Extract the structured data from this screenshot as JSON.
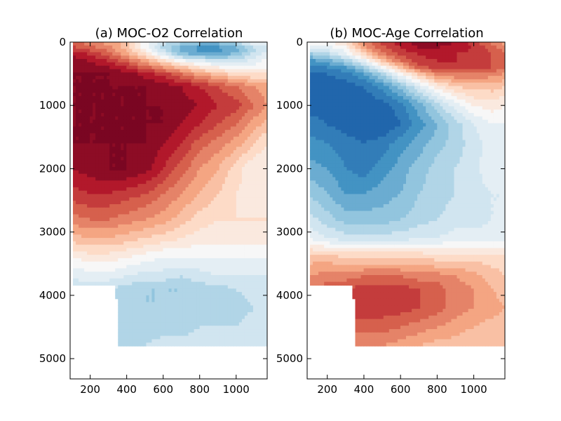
{
  "chart_data": [
    {
      "type": "heatmap",
      "title": "(a) MOC-O2 Correlation",
      "xlabel": "",
      "ylabel": "",
      "xlim": [
        90,
        1170
      ],
      "ylim": [
        5320,
        0
      ],
      "y_inverted": true,
      "xticks": [
        200,
        400,
        600,
        800,
        1000
      ],
      "yticks": [
        0,
        1000,
        2000,
        3000,
        4000,
        5000
      ],
      "colormap": "RdBu_r",
      "levels": [
        -1,
        -0.9,
        -0.8,
        -0.7,
        -0.6,
        -0.5,
        -0.4,
        -0.3,
        -0.2,
        -0.1,
        0,
        0.1,
        0.2,
        0.3,
        0.4,
        0.5,
        0.6,
        0.7,
        0.8,
        0.9,
        1
      ],
      "grid": false,
      "x": [
        90,
        200,
        300,
        400,
        500,
        600,
        700,
        800,
        900,
        1000,
        1100,
        1170
      ],
      "y": [
        0,
        100,
        200,
        300,
        400,
        500,
        700,
        1000,
        1300,
        1600,
        2000,
        2400,
        2800,
        3100,
        3400,
        3700,
        3900,
        4200,
        4500,
        4800
      ],
      "z": [
        [
          0.6,
          0.5,
          0.4,
          0.3,
          0.0,
          -0.2,
          -0.3,
          -0.4,
          -0.4,
          -0.3,
          0.0,
          0.0
        ],
        [
          0.7,
          0.6,
          0.5,
          0.3,
          0.0,
          -0.3,
          -0.5,
          -0.6,
          -0.6,
          -0.5,
          -0.3,
          -0.2
        ],
        [
          0.85,
          0.75,
          0.6,
          0.4,
          0.2,
          -0.1,
          -0.4,
          -0.5,
          -0.5,
          -0.4,
          -0.2,
          -0.1
        ],
        [
          0.9,
          0.85,
          0.75,
          0.6,
          0.4,
          0.2,
          0.0,
          -0.1,
          -0.2,
          -0.2,
          -0.1,
          0.0
        ],
        [
          0.95,
          0.9,
          0.85,
          0.75,
          0.6,
          0.45,
          0.3,
          0.15,
          0.05,
          0.0,
          0.0,
          0.05
        ],
        [
          0.95,
          0.95,
          0.95,
          0.9,
          0.8,
          0.7,
          0.55,
          0.4,
          0.3,
          0.2,
          0.15,
          0.15
        ],
        [
          0.95,
          0.95,
          0.95,
          0.95,
          0.95,
          0.9,
          0.85,
          0.75,
          0.65,
          0.55,
          0.45,
          0.4
        ],
        [
          0.95,
          0.95,
          0.95,
          0.95,
          0.95,
          0.95,
          0.9,
          0.85,
          0.75,
          0.7,
          0.55,
          0.45
        ],
        [
          0.95,
          0.95,
          0.95,
          0.95,
          0.95,
          0.95,
          0.85,
          0.75,
          0.65,
          0.55,
          0.4,
          0.3
        ],
        [
          0.95,
          0.95,
          0.95,
          0.95,
          0.95,
          0.85,
          0.75,
          0.6,
          0.5,
          0.4,
          0.25,
          0.15
        ],
        [
          0.85,
          0.9,
          0.95,
          0.95,
          0.9,
          0.75,
          0.6,
          0.45,
          0.35,
          0.2,
          0.05,
          0.1
        ],
        [
          0.7,
          0.75,
          0.75,
          0.7,
          0.65,
          0.55,
          0.45,
          0.35,
          0.25,
          0.15,
          0.1,
          0.15
        ],
        [
          0.5,
          0.55,
          0.55,
          0.5,
          0.45,
          0.4,
          0.3,
          0.2,
          0.15,
          0.15,
          0.15,
          0.15
        ],
        [
          0.3,
          0.35,
          0.35,
          0.3,
          0.25,
          0.2,
          0.15,
          0.1,
          0.1,
          0.1,
          0.1,
          0.1
        ],
        [
          0.05,
          0.1,
          0.1,
          0.05,
          0.0,
          -0.05,
          -0.05,
          -0.05,
          -0.05,
          -0.05,
          -0.05,
          -0.05
        ],
        [
          -0.15,
          -0.1,
          -0.1,
          -0.15,
          -0.2,
          -0.2,
          -0.25,
          -0.2,
          -0.15,
          -0.15,
          -0.15,
          -0.15
        ],
        [
          -0.2,
          -0.2,
          -0.25,
          -0.3,
          -0.35,
          -0.35,
          -0.35,
          -0.3,
          -0.3,
          -0.25,
          -0.2,
          -0.2
        ],
        [
          null,
          null,
          null,
          -0.35,
          -0.35,
          -0.35,
          -0.35,
          -0.35,
          -0.35,
          -0.3,
          -0.25,
          -0.25
        ],
        [
          null,
          null,
          null,
          -0.3,
          -0.3,
          -0.3,
          -0.3,
          -0.25,
          -0.25,
          -0.25,
          -0.2,
          -0.2
        ],
        [
          null,
          null,
          null,
          -0.25,
          -0.25,
          -0.2,
          -0.2,
          -0.2,
          -0.2,
          -0.2,
          -0.2,
          -0.2
        ]
      ]
    },
    {
      "type": "heatmap",
      "title": "(b) MOC-Age Correlation",
      "xlabel": "",
      "ylabel": "",
      "xlim": [
        90,
        1170
      ],
      "ylim": [
        5320,
        0
      ],
      "y_inverted": true,
      "xticks": [
        200,
        400,
        600,
        800,
        1000
      ],
      "yticks": [
        0,
        1000,
        2000,
        3000,
        4000,
        5000
      ],
      "colormap": "RdBu_r",
      "levels": [
        -1,
        -0.9,
        -0.8,
        -0.7,
        -0.6,
        -0.5,
        -0.4,
        -0.3,
        -0.2,
        -0.1,
        0,
        0.1,
        0.2,
        0.3,
        0.4,
        0.5,
        0.6,
        0.7,
        0.8,
        0.9,
        1
      ],
      "grid": false,
      "x": [
        90,
        200,
        300,
        400,
        500,
        600,
        700,
        800,
        900,
        1000,
        1100,
        1170
      ],
      "y": [
        0,
        100,
        200,
        300,
        400,
        500,
        700,
        1000,
        1300,
        1600,
        2000,
        2400,
        2800,
        3100,
        3400,
        3700,
        3900,
        4200,
        4500,
        4800
      ],
      "z": [
        [
          0.0,
          0.0,
          0.2,
          0.5,
          0.7,
          0.8,
          0.9,
          0.9,
          0.85,
          0.7,
          0.5,
          0.4
        ],
        [
          -0.2,
          -0.1,
          0.0,
          0.4,
          0.6,
          0.75,
          0.85,
          0.85,
          0.8,
          0.75,
          0.6,
          0.5
        ],
        [
          -0.4,
          -0.3,
          -0.1,
          0.2,
          0.5,
          0.65,
          0.75,
          0.8,
          0.75,
          0.7,
          0.65,
          0.6
        ],
        [
          -0.6,
          -0.5,
          -0.35,
          -0.1,
          0.3,
          0.55,
          0.7,
          0.75,
          0.75,
          0.7,
          0.65,
          0.6
        ],
        [
          -0.7,
          -0.65,
          -0.55,
          -0.35,
          0.0,
          0.3,
          0.6,
          0.7,
          0.7,
          0.7,
          0.65,
          0.6
        ],
        [
          -0.8,
          -0.75,
          -0.7,
          -0.55,
          -0.3,
          0.0,
          0.3,
          0.5,
          0.55,
          0.55,
          0.5,
          0.45
        ],
        [
          -0.8,
          -0.8,
          -0.8,
          -0.75,
          -0.6,
          -0.4,
          -0.15,
          0.1,
          0.25,
          0.3,
          0.3,
          0.25
        ],
        [
          -0.8,
          -0.8,
          -0.85,
          -0.85,
          -0.8,
          -0.7,
          -0.5,
          -0.3,
          -0.1,
          0.05,
          0.1,
          0.05
        ],
        [
          -0.7,
          -0.75,
          -0.8,
          -0.85,
          -0.85,
          -0.75,
          -0.6,
          -0.45,
          -0.3,
          -0.15,
          -0.05,
          -0.05
        ],
        [
          -0.6,
          -0.65,
          -0.7,
          -0.75,
          -0.7,
          -0.6,
          -0.5,
          -0.4,
          -0.3,
          -0.2,
          -0.1,
          -0.1
        ],
        [
          -0.5,
          -0.55,
          -0.65,
          -0.7,
          -0.6,
          -0.5,
          -0.4,
          -0.3,
          -0.25,
          -0.2,
          -0.05,
          -0.1
        ],
        [
          -0.35,
          -0.45,
          -0.55,
          -0.55,
          -0.5,
          -0.45,
          -0.35,
          -0.3,
          -0.25,
          -0.2,
          -0.15,
          -0.15
        ],
        [
          -0.2,
          -0.3,
          -0.4,
          -0.4,
          -0.4,
          -0.35,
          -0.3,
          -0.25,
          -0.2,
          -0.2,
          -0.15,
          -0.15
        ],
        [
          -0.05,
          -0.15,
          -0.2,
          -0.2,
          -0.2,
          -0.2,
          -0.15,
          -0.15,
          -0.1,
          -0.1,
          -0.1,
          -0.1
        ],
        [
          0.3,
          0.3,
          0.25,
          0.25,
          0.25,
          0.25,
          0.25,
          0.2,
          0.2,
          0.2,
          0.2,
          0.2
        ],
        [
          0.45,
          0.5,
          0.5,
          0.55,
          0.55,
          0.55,
          0.5,
          0.5,
          0.45,
          0.4,
          0.3,
          0.25
        ],
        [
          0.55,
          0.6,
          0.65,
          0.7,
          0.7,
          0.7,
          0.65,
          0.6,
          0.5,
          0.45,
          0.35,
          0.3
        ],
        [
          null,
          null,
          null,
          0.7,
          0.7,
          0.7,
          0.65,
          0.6,
          0.5,
          0.45,
          0.4,
          0.35
        ],
        [
          null,
          null,
          null,
          0.6,
          0.6,
          0.55,
          0.5,
          0.45,
          0.4,
          0.35,
          0.3,
          0.3
        ],
        [
          null,
          null,
          null,
          0.45,
          0.45,
          0.4,
          0.35,
          0.3,
          0.3,
          0.25,
          0.25,
          0.25
        ]
      ]
    }
  ]
}
